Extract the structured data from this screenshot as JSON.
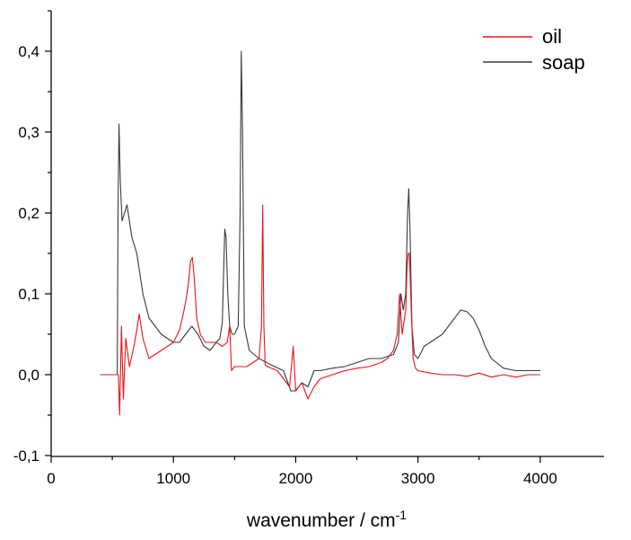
{
  "chart_data": {
    "type": "line",
    "title": "",
    "xlabel": "wavenumber / cm",
    "xlabel_superscript": "-1",
    "ylabel": "",
    "xlim": [
      0,
      4500
    ],
    "ylim": [
      -0.1,
      0.45
    ],
    "xticks": [
      0,
      1000,
      2000,
      3000,
      4000
    ],
    "xtick_labels": [
      "0",
      "1000",
      "2000",
      "3000",
      "4000"
    ],
    "yticks": [
      -0.1,
      0.0,
      0.1,
      0.2,
      0.3,
      0.4
    ],
    "ytick_labels": [
      "-0,1",
      "0,0",
      "0,1",
      "0,2",
      "0,3",
      "0,4"
    ],
    "grid": false,
    "legend_position": "top-right",
    "series": [
      {
        "name": "oil",
        "color": "#e8141c",
        "x": [
          400,
          550,
          560,
          575,
          590,
          610,
          640,
          670,
          700,
          720,
          750,
          800,
          850,
          900,
          950,
          1000,
          1050,
          1080,
          1100,
          1120,
          1140,
          1155,
          1170,
          1190,
          1220,
          1260,
          1300,
          1350,
          1400,
          1440,
          1460,
          1475,
          1500,
          1600,
          1700,
          1720,
          1730,
          1740,
          1750,
          1770,
          1800,
          1850,
          1900,
          1950,
          1980,
          2000,
          2050,
          2100,
          2150,
          2200,
          2300,
          2400,
          2500,
          2600,
          2700,
          2750,
          2800,
          2830,
          2850,
          2870,
          2900,
          2910,
          2920,
          2930,
          2945,
          2960,
          2980,
          3000,
          3100,
          3200,
          3300,
          3400,
          3500,
          3600,
          3700,
          3800,
          3900,
          4000
        ],
        "y": [
          0.0,
          0.0,
          -0.05,
          0.06,
          -0.03,
          0.045,
          0.01,
          0.03,
          0.055,
          0.075,
          0.045,
          0.02,
          0.025,
          0.03,
          0.035,
          0.04,
          0.055,
          0.075,
          0.09,
          0.11,
          0.14,
          0.145,
          0.12,
          0.07,
          0.05,
          0.04,
          0.04,
          0.04,
          0.035,
          0.04,
          0.06,
          0.005,
          0.01,
          0.01,
          0.02,
          0.06,
          0.21,
          0.06,
          0.012,
          0.01,
          0.008,
          0.005,
          -0.005,
          -0.015,
          0.035,
          -0.02,
          -0.01,
          -0.03,
          -0.015,
          -0.005,
          0.0,
          0.005,
          0.008,
          0.01,
          0.015,
          0.02,
          0.03,
          0.05,
          0.1,
          0.05,
          0.08,
          0.13,
          0.15,
          0.15,
          0.08,
          0.02,
          0.008,
          0.005,
          0.002,
          0.0,
          0.0,
          -0.002,
          0.002,
          -0.003,
          0.0,
          -0.003,
          0.0,
          0.0
        ]
      },
      {
        "name": "soap",
        "color": "#3a3a3a",
        "x": [
          400,
          540,
          548,
          555,
          565,
          580,
          600,
          620,
          640,
          660,
          700,
          750,
          800,
          850,
          900,
          950,
          1000,
          1050,
          1100,
          1150,
          1200,
          1250,
          1300,
          1350,
          1380,
          1400,
          1420,
          1430,
          1445,
          1460,
          1480,
          1500,
          1530,
          1545,
          1555,
          1565,
          1580,
          1620,
          1700,
          1800,
          1900,
          1960,
          2000,
          2050,
          2100,
          2150,
          2200,
          2300,
          2400,
          2500,
          2600,
          2700,
          2800,
          2840,
          2860,
          2880,
          2900,
          2915,
          2925,
          2935,
          2950,
          2970,
          3000,
          3050,
          3100,
          3200,
          3300,
          3350,
          3400,
          3450,
          3500,
          3550,
          3600,
          3700,
          3800,
          3900,
          4000
        ],
        "y": [
          0.0,
          0.0,
          0.22,
          0.31,
          0.24,
          0.19,
          0.2,
          0.21,
          0.19,
          0.17,
          0.15,
          0.1,
          0.07,
          0.06,
          0.05,
          0.045,
          0.04,
          0.04,
          0.05,
          0.06,
          0.05,
          0.035,
          0.03,
          0.04,
          0.045,
          0.065,
          0.18,
          0.17,
          0.1,
          0.06,
          0.05,
          0.05,
          0.06,
          0.2,
          0.4,
          0.3,
          0.06,
          0.03,
          0.02,
          0.012,
          0.005,
          -0.02,
          -0.02,
          -0.01,
          -0.015,
          0.005,
          0.005,
          0.008,
          0.01,
          0.015,
          0.02,
          0.02,
          0.025,
          0.04,
          0.1,
          0.08,
          0.1,
          0.2,
          0.23,
          0.18,
          0.06,
          0.025,
          0.02,
          0.035,
          0.04,
          0.05,
          0.07,
          0.08,
          0.078,
          0.07,
          0.055,
          0.035,
          0.02,
          0.008,
          0.005,
          0.005,
          0.005
        ]
      }
    ]
  }
}
